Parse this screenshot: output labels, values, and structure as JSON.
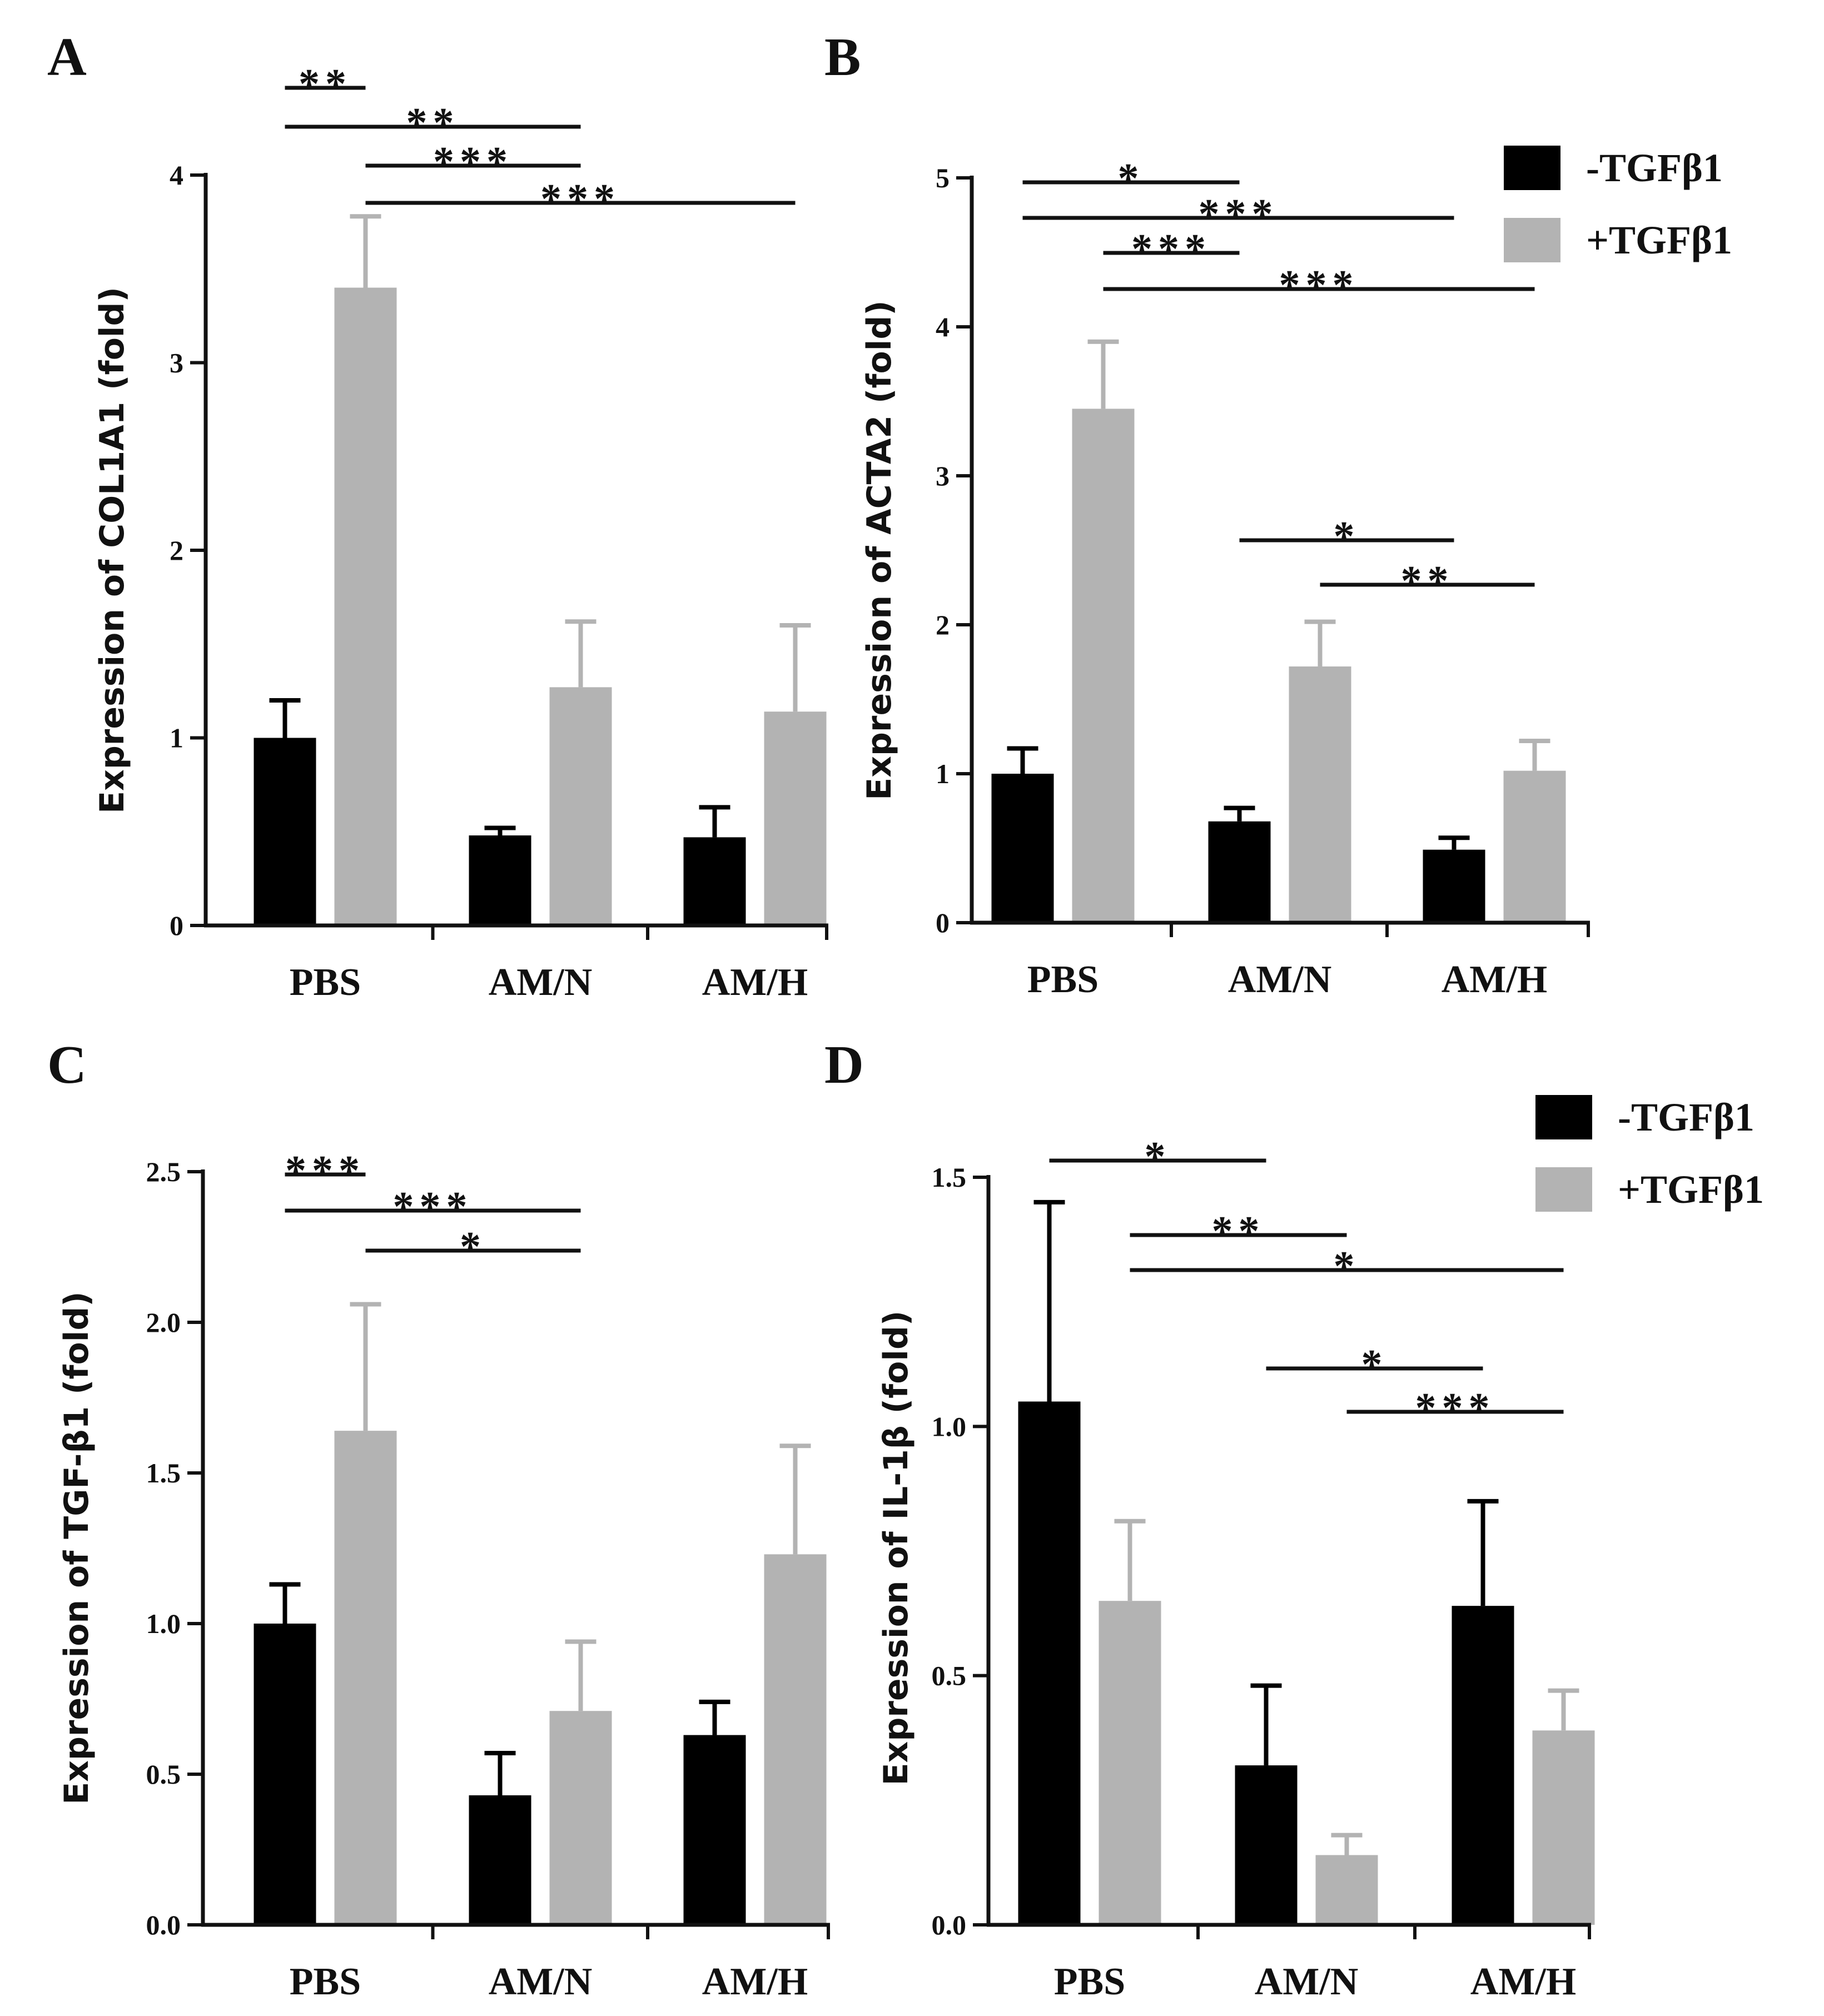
{
  "colors": {
    "minus": "#000000",
    "plus": "#b3b3b3",
    "axis": "#111111"
  },
  "legend": {
    "minus": "-TGFβ1",
    "plus": "+TGFβ1"
  },
  "chart_data": [
    {
      "letter": "A",
      "type": "bar",
      "ylabel": "Expression of COL1A1 (fold)",
      "categories": [
        "PBS",
        "AM/N",
        "AM/H"
      ],
      "ylim": [
        0,
        4
      ],
      "yticks": [
        "0",
        "1",
        "2",
        "3",
        "4"
      ],
      "series": [
        {
          "name": "-TGFβ1",
          "values": [
            1.0,
            0.48,
            0.47
          ],
          "errors": [
            0.2,
            0.04,
            0.16
          ]
        },
        {
          "name": "+TGFβ1",
          "values": [
            3.4,
            1.27,
            1.14
          ],
          "errors": [
            0.38,
            0.35,
            0.46
          ]
        }
      ],
      "significance": [
        {
          "from": [
            0,
            0
          ],
          "to": [
            0,
            1
          ],
          "label": "**"
        },
        {
          "from": [
            0,
            0
          ],
          "to": [
            1,
            1
          ],
          "label": "**"
        },
        {
          "from": [
            0,
            1
          ],
          "to": [
            1,
            1
          ],
          "label": "***"
        },
        {
          "from": [
            0,
            1
          ],
          "to": [
            2,
            1
          ],
          "label": "***"
        }
      ]
    },
    {
      "letter": "B",
      "type": "bar",
      "ylabel": "Expression of ACTA2 (fold)",
      "categories": [
        "PBS",
        "AM/N",
        "AM/H"
      ],
      "ylim": [
        0,
        5
      ],
      "yticks": [
        "0",
        "1",
        "2",
        "3",
        "4",
        "5"
      ],
      "series": [
        {
          "name": "-TGFβ1",
          "values": [
            1.0,
            0.68,
            0.49
          ],
          "errors": [
            0.17,
            0.09,
            0.08
          ]
        },
        {
          "name": "+TGFβ1",
          "values": [
            3.45,
            1.72,
            1.02
          ],
          "errors": [
            0.45,
            0.3,
            0.2
          ]
        }
      ],
      "significance": [
        {
          "from": [
            0,
            0
          ],
          "to": [
            1,
            0
          ],
          "label": "*"
        },
        {
          "from": [
            0,
            0
          ],
          "to": [
            2,
            0
          ],
          "label": "***"
        },
        {
          "from": [
            0,
            1
          ],
          "to": [
            1,
            0
          ],
          "label": "***"
        },
        {
          "from": [
            0,
            1
          ],
          "to": [
            2,
            1
          ],
          "label": "***"
        },
        {
          "from": [
            1,
            0
          ],
          "to": [
            2,
            0
          ],
          "label": "*"
        },
        {
          "from": [
            1,
            1
          ],
          "to": [
            2,
            1
          ],
          "label": "**"
        }
      ]
    },
    {
      "letter": "C",
      "type": "bar",
      "ylabel": "Expression of TGF-β1 (fold)",
      "categories": [
        "PBS",
        "AM/N",
        "AM/H"
      ],
      "ylim": [
        0,
        2.5
      ],
      "yticks": [
        "0.0",
        "0.5",
        "1.0",
        "1.5",
        "2.0",
        "2.5"
      ],
      "series": [
        {
          "name": "-TGFβ1",
          "values": [
            1.0,
            0.43,
            0.63
          ],
          "errors": [
            0.13,
            0.14,
            0.11
          ]
        },
        {
          "name": "+TGFβ1",
          "values": [
            1.64,
            0.71,
            1.23
          ],
          "errors": [
            0.42,
            0.23,
            0.36
          ]
        }
      ],
      "significance": [
        {
          "from": [
            0,
            0
          ],
          "to": [
            0,
            1
          ],
          "label": "***"
        },
        {
          "from": [
            0,
            0
          ],
          "to": [
            1,
            1
          ],
          "label": "***"
        },
        {
          "from": [
            0,
            1
          ],
          "to": [
            1,
            1
          ],
          "label": "*"
        }
      ]
    },
    {
      "letter": "D",
      "type": "bar",
      "ylabel": "Expression of IL-1β  (fold)",
      "categories": [
        "PBS",
        "AM/N",
        "AM/H"
      ],
      "ylim": [
        0,
        1.5
      ],
      "yticks": [
        "0.0",
        "0.5",
        "1.0",
        "1.5"
      ],
      "series": [
        {
          "name": "-TGFβ1",
          "values": [
            1.05,
            0.32,
            0.64
          ],
          "errors": [
            0.4,
            0.16,
            0.21
          ]
        },
        {
          "name": "+TGFβ1",
          "values": [
            0.65,
            0.14,
            0.39
          ],
          "errors": [
            0.16,
            0.04,
            0.08
          ]
        }
      ],
      "significance": [
        {
          "from": [
            0,
            0
          ],
          "to": [
            1,
            0
          ],
          "label": "*"
        },
        {
          "from": [
            0,
            1
          ],
          "to": [
            1,
            1
          ],
          "label": "**"
        },
        {
          "from": [
            0,
            1
          ],
          "to": [
            2,
            1
          ],
          "label": "*"
        },
        {
          "from": [
            1,
            0
          ],
          "to": [
            2,
            0
          ],
          "label": "*"
        },
        {
          "from": [
            1,
            1
          ],
          "to": [
            2,
            1
          ],
          "label": "***"
        }
      ]
    }
  ]
}
